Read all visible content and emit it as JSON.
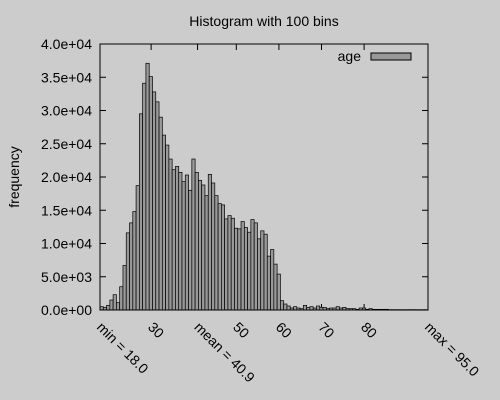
{
  "chart_data": {
    "type": "bar",
    "title": "Histogram with 100 bins",
    "ylabel": "frequency",
    "xlabel": "",
    "legend": {
      "label": "age",
      "position": "top-right",
      "fill": "#999999"
    },
    "xlim": [
      18.0,
      95.0
    ],
    "ylim": [
      0,
      40000
    ],
    "yticks": [
      {
        "value": 0,
        "label": "0.0e+00"
      },
      {
        "value": 5000,
        "label": "5.0e+03"
      },
      {
        "value": 10000,
        "label": "1.0e+04"
      },
      {
        "value": 15000,
        "label": "1.5e+04"
      },
      {
        "value": 20000,
        "label": "2.0e+04"
      },
      {
        "value": 25000,
        "label": "2.5e+04"
      },
      {
        "value": 30000,
        "label": "3.0e+04"
      },
      {
        "value": 35000,
        "label": "3.5e+04"
      },
      {
        "value": 40000,
        "label": "4.0e+04"
      }
    ],
    "xticks": [
      {
        "value": 18.0,
        "label": "min = 18.0"
      },
      {
        "value": 30,
        "label": "30"
      },
      {
        "value": 40.9,
        "label": "mean = 40.9"
      },
      {
        "value": 50,
        "label": "50"
      },
      {
        "value": 60,
        "label": "60"
      },
      {
        "value": 70,
        "label": "70"
      },
      {
        "value": 80,
        "label": "80"
      },
      {
        "value": 95.0,
        "label": "max = 95.0"
      }
    ],
    "bin_width": 0.77,
    "bins_x": [
      18.385,
      19.155,
      19.925,
      20.695,
      21.465,
      22.235,
      23.005,
      23.775,
      24.545,
      25.315,
      26.085,
      26.855,
      27.625,
      28.395,
      29.165,
      29.935,
      30.705,
      31.475,
      32.245,
      33.015,
      33.785,
      34.555,
      35.325,
      36.095,
      36.865,
      37.635,
      38.405,
      39.175,
      39.945,
      40.715,
      41.485,
      42.255,
      43.025,
      43.795,
      44.565,
      45.335,
      46.105,
      46.875,
      47.645,
      48.415,
      49.185,
      49.955,
      50.725,
      51.495,
      52.265,
      53.035,
      53.805,
      54.575,
      55.345,
      56.115,
      56.885,
      57.655,
      58.425,
      59.195,
      59.965,
      60.735,
      61.505,
      62.275,
      63.045,
      63.815,
      64.585,
      65.355,
      66.125,
      66.895,
      67.665,
      68.435,
      69.205,
      69.975,
      70.745,
      71.515,
      72.285,
      73.055,
      73.825,
      74.595,
      75.365,
      76.135,
      76.905,
      77.675,
      78.445,
      79.215,
      79.985,
      80.755,
      81.525,
      82.295,
      83.065,
      83.835,
      84.605,
      85.375,
      86.145,
      86.915,
      87.685,
      88.455,
      89.225,
      89.995,
      90.765,
      91.535,
      92.305,
      93.075,
      93.845,
      94.615
    ],
    "values": [
      500,
      400,
      700,
      1500,
      2300,
      1100,
      3500,
      6700,
      11600,
      13100,
      14800,
      18700,
      29500,
      34100,
      37100,
      35100,
      32800,
      31300,
      29000,
      26300,
      24800,
      22700,
      21100,
      21600,
      20700,
      19300,
      20300,
      18000,
      22700,
      20700,
      19500,
      18800,
      17200,
      20400,
      19100,
      17200,
      16000,
      15800,
      13700,
      14200,
      13800,
      12300,
      12200,
      13300,
      12400,
      11700,
      13600,
      13100,
      10700,
      11900,
      11400,
      8100,
      9100,
      6900,
      5400,
      1400,
      900,
      600,
      300,
      500,
      300,
      200,
      700,
      400,
      500,
      300,
      600,
      400,
      400,
      200,
      300,
      300,
      500,
      300,
      400,
      200,
      200,
      200,
      100,
      300,
      300,
      100,
      200,
      100,
      100,
      100,
      100,
      100,
      50,
      50,
      50,
      50,
      50,
      50,
      50,
      50,
      50,
      50,
      50,
      50
    ]
  }
}
